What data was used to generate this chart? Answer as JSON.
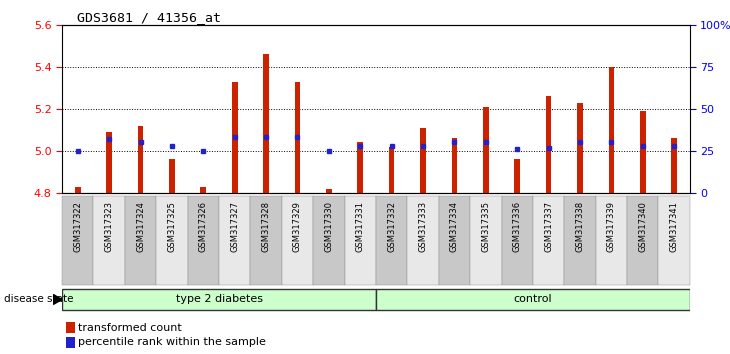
{
  "title": "GDS3681 / 41356_at",
  "samples": [
    "GSM317322",
    "GSM317323",
    "GSM317324",
    "GSM317325",
    "GSM317326",
    "GSM317327",
    "GSM317328",
    "GSM317329",
    "GSM317330",
    "GSM317331",
    "GSM317332",
    "GSM317333",
    "GSM317334",
    "GSM317335",
    "GSM317336",
    "GSM317337",
    "GSM317338",
    "GSM317339",
    "GSM317340",
    "GSM317341"
  ],
  "transformed_count": [
    4.83,
    5.09,
    5.12,
    4.96,
    4.83,
    5.33,
    5.46,
    5.33,
    4.82,
    5.04,
    5.02,
    5.11,
    5.06,
    5.21,
    4.96,
    5.26,
    5.23,
    5.4,
    5.19,
    5.06
  ],
  "percentile_rank": [
    25,
    32,
    30,
    28,
    25,
    33,
    33,
    33,
    25,
    28,
    28,
    28,
    30,
    30,
    26,
    27,
    30,
    30,
    28,
    28
  ],
  "ylim_left": [
    4.8,
    5.6
  ],
  "ylim_right": [
    0,
    100
  ],
  "y_ticks_left": [
    4.8,
    5.0,
    5.2,
    5.4,
    5.6
  ],
  "y_ticks_right": [
    0,
    25,
    50,
    75,
    100
  ],
  "bar_color": "#cc2200",
  "dot_color": "#2222cc",
  "group_labels": [
    "type 2 diabetes",
    "control"
  ],
  "n_type2": 10,
  "n_control": 10,
  "legend_labels": [
    "transformed count",
    "percentile rank within the sample"
  ],
  "disease_state_label": "disease state",
  "tick_label_bg_odd": "#c8c8c8",
  "tick_label_bg_even": "#e8e8e8",
  "group_bg_color_light": "#ccffcc",
  "group_bg_color_border": "#44cc44"
}
